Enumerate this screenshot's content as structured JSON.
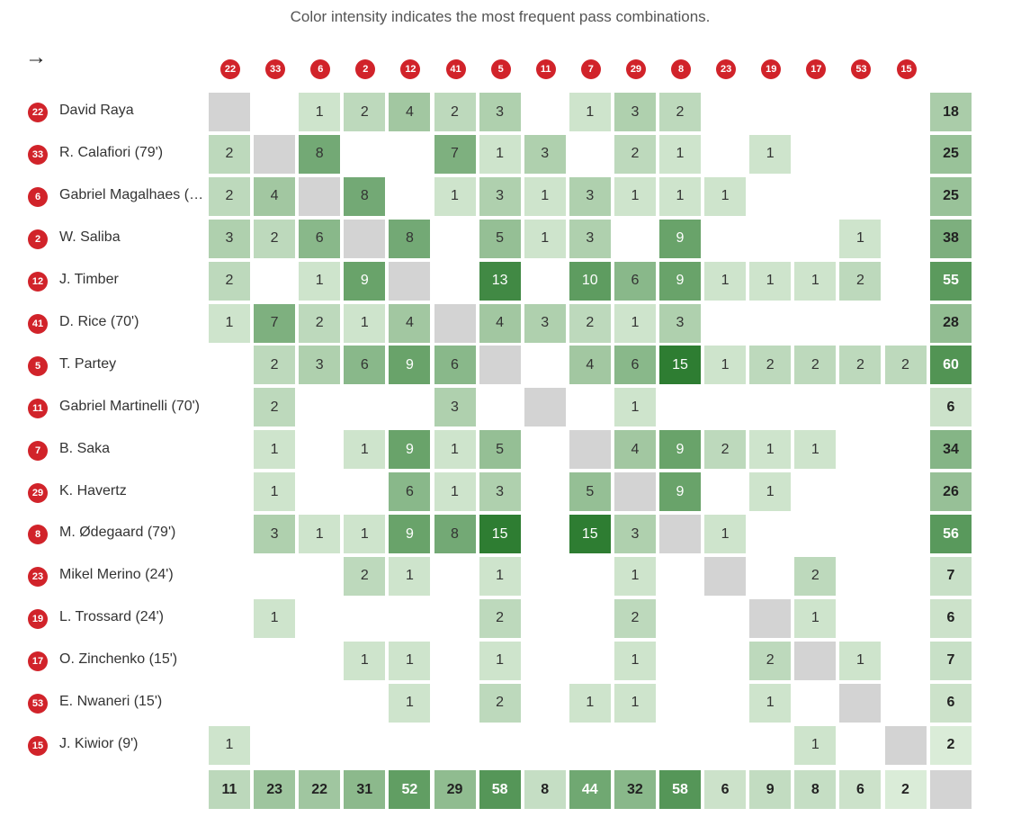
{
  "caption": "Color intensity indicates the most frequent pass combinations.",
  "arrow": "→",
  "colors": {
    "badge": "#d1232a",
    "self": "#d3d3d3",
    "scale_low": "#e6f3e3",
    "scale_high": "#2e7d32"
  },
  "chart_data": {
    "type": "heatmap",
    "title": "",
    "subtitle": "Color intensity indicates the most frequent pass combinations.",
    "columns": [
      "22",
      "33",
      "6",
      "2",
      "12",
      "41",
      "5",
      "11",
      "7",
      "29",
      "8",
      "23",
      "19",
      "17",
      "53",
      "15"
    ],
    "rows": [
      {
        "number": "22",
        "name": "David Raya",
        "values": [
          null,
          null,
          1,
          2,
          4,
          2,
          3,
          null,
          1,
          3,
          2,
          null,
          null,
          null,
          null,
          null
        ],
        "total": 18
      },
      {
        "number": "33",
        "name": "R. Calafiori (79')",
        "values": [
          2,
          null,
          8,
          null,
          null,
          7,
          1,
          3,
          null,
          2,
          1,
          null,
          1,
          null,
          null,
          null
        ],
        "total": 25
      },
      {
        "number": "6",
        "name": "Gabriel Magalhaes (…",
        "values": [
          2,
          4,
          null,
          8,
          null,
          1,
          3,
          1,
          3,
          1,
          1,
          1,
          null,
          null,
          null,
          null
        ],
        "total": 25
      },
      {
        "number": "2",
        "name": "W. Saliba",
        "values": [
          3,
          2,
          6,
          null,
          8,
          null,
          5,
          1,
          3,
          null,
          9,
          null,
          null,
          null,
          1,
          null
        ],
        "total": 38
      },
      {
        "number": "12",
        "name": "J. Timber",
        "values": [
          2,
          null,
          1,
          9,
          null,
          null,
          13,
          null,
          10,
          6,
          9,
          1,
          1,
          1,
          2,
          null
        ],
        "total": 55
      },
      {
        "number": "41",
        "name": "D. Rice (70')",
        "values": [
          1,
          7,
          2,
          1,
          4,
          null,
          4,
          3,
          2,
          1,
          3,
          null,
          null,
          null,
          null,
          null
        ],
        "total": 28
      },
      {
        "number": "5",
        "name": "T. Partey",
        "values": [
          null,
          2,
          3,
          6,
          9,
          6,
          null,
          null,
          4,
          6,
          15,
          1,
          2,
          2,
          2,
          2
        ],
        "total": 60
      },
      {
        "number": "11",
        "name": "Gabriel Martinelli (70')",
        "values": [
          null,
          2,
          null,
          null,
          null,
          3,
          null,
          null,
          null,
          1,
          null,
          null,
          null,
          null,
          null,
          null
        ],
        "total": 6
      },
      {
        "number": "7",
        "name": "B. Saka",
        "values": [
          null,
          1,
          null,
          1,
          9,
          1,
          5,
          null,
          null,
          4,
          9,
          2,
          1,
          1,
          null,
          null
        ],
        "total": 34
      },
      {
        "number": "29",
        "name": "K. Havertz",
        "values": [
          null,
          1,
          null,
          null,
          6,
          1,
          3,
          null,
          5,
          null,
          9,
          null,
          1,
          null,
          null,
          null
        ],
        "total": 26
      },
      {
        "number": "8",
        "name": "M. Ødegaard (79')",
        "values": [
          null,
          3,
          1,
          1,
          9,
          8,
          15,
          null,
          15,
          3,
          null,
          1,
          null,
          null,
          null,
          null
        ],
        "total": 56
      },
      {
        "number": "23",
        "name": "Mikel Merino (24')",
        "values": [
          null,
          null,
          null,
          2,
          1,
          null,
          1,
          null,
          null,
          1,
          null,
          null,
          null,
          2,
          null,
          null
        ],
        "total": 7
      },
      {
        "number": "19",
        "name": "L. Trossard (24')",
        "values": [
          null,
          1,
          null,
          null,
          null,
          null,
          2,
          null,
          null,
          2,
          null,
          null,
          null,
          1,
          null,
          null
        ],
        "total": 6
      },
      {
        "number": "17",
        "name": "O. Zinchenko (15')",
        "values": [
          null,
          null,
          null,
          1,
          1,
          null,
          1,
          null,
          null,
          1,
          null,
          null,
          2,
          null,
          1,
          null
        ],
        "total": 7
      },
      {
        "number": "53",
        "name": "E. Nwaneri (15')",
        "values": [
          null,
          null,
          null,
          null,
          1,
          null,
          2,
          null,
          1,
          1,
          null,
          null,
          1,
          null,
          null,
          null
        ],
        "total": 6
      },
      {
        "number": "15",
        "name": "J. Kiwior (9')",
        "values": [
          1,
          null,
          null,
          null,
          null,
          null,
          null,
          null,
          null,
          null,
          null,
          null,
          null,
          1,
          null,
          null
        ],
        "total": 2
      }
    ],
    "column_totals": [
      11,
      23,
      22,
      31,
      52,
      29,
      58,
      8,
      44,
      32,
      58,
      6,
      9,
      8,
      6,
      2
    ]
  }
}
